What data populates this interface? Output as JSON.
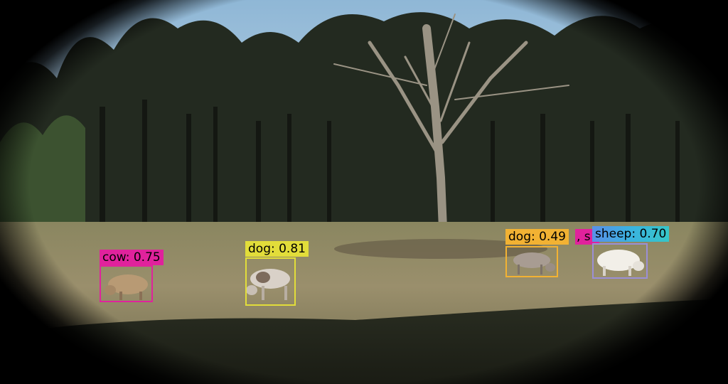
{
  "detections": [
    {
      "label": "cow: 0.75",
      "color": "#e0229c"
    },
    {
      "label": "dog: 0.81",
      "color": "#e2dd3a"
    },
    {
      "label": "dog: 0.49",
      "color": "#f2b233"
    },
    {
      "label": ", s",
      "color": "#e0229c"
    },
    {
      "label": "sheep: 0.70",
      "color": "#3ab3e0"
    }
  ]
}
